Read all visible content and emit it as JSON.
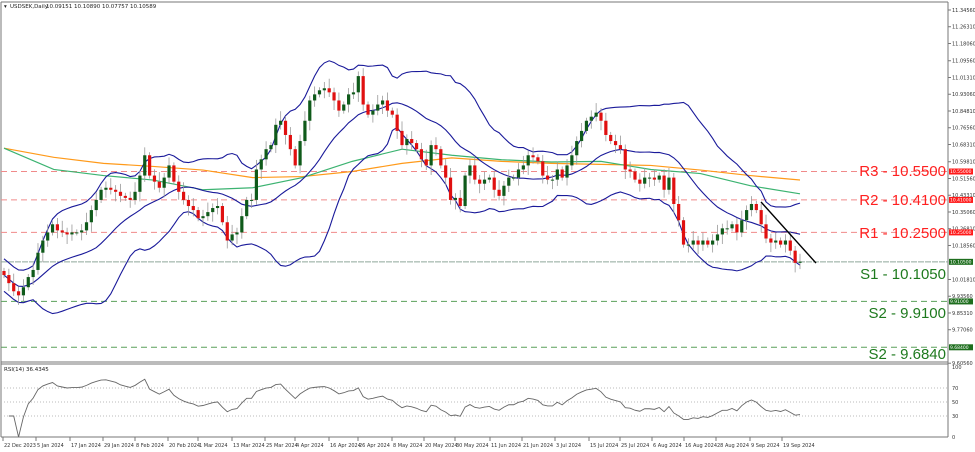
{
  "header": {
    "symbol": "USDSEK,Daily",
    "ohlc": "10.09151 10.10890 10.07757 10.10589"
  },
  "rsi": {
    "label": "RSI(14) 36.4345",
    "period": 14,
    "levels": [
      70,
      50,
      30
    ],
    "axis_ticks": [
      "100",
      "70",
      "50",
      "30",
      "0"
    ]
  },
  "price_axis": {
    "ticks": [
      "11.34560",
      "11.26310",
      "11.18060",
      "11.09560",
      "11.01310",
      "10.93060",
      "10.84810",
      "10.76560",
      "10.68310",
      "10.59810",
      "10.51560",
      "10.43310",
      "10.35060",
      "10.26810",
      "10.18560",
      "10.01810",
      "9.93560",
      "9.85310",
      "9.77060",
      "9.60560"
    ]
  },
  "time_axis": {
    "ticks": [
      "22 Dec 2023",
      "5 Jan 2024",
      "17 Jan 2024",
      "29 Jan 2024",
      "8 Feb 2024",
      "20 Feb 2024",
      "1 Mar 2024",
      "13 Mar 2024",
      "25 Mar 2024",
      "4 Apr 2024",
      "16 Apr 2024",
      "26 Apr 2024",
      "8 May 2024",
      "20 May 2024",
      "30 May 2024",
      "11 Jun 2024",
      "21 Jun 2024",
      "3 Jul 2024",
      "15 Jul 2024",
      "25 Jul 2024",
      "6 Aug 2024",
      "16 Aug 2024",
      "28 Aug 2024",
      "9 Sep 2024",
      "19 Sep 2024"
    ]
  },
  "levels": [
    {
      "label": "R3 - 10.5500",
      "price": 10.55,
      "badge": "10.55000",
      "kind": "resistance"
    },
    {
      "label": "R2 - 10.4100",
      "price": 10.41,
      "badge": "10.41000",
      "kind": "resistance"
    },
    {
      "label": "R1 - 10.2500",
      "price": 10.25,
      "badge": "10.25000",
      "kind": "resistance"
    },
    {
      "label": "S1 - 10.1050",
      "price": 10.105,
      "badge": "10.10500",
      "kind": "support"
    },
    {
      "label": "S2 - 9.9100",
      "price": 9.91,
      "badge": "9.91000",
      "kind": "support"
    },
    {
      "label": "S2 - 9.6840",
      "price": 9.684,
      "badge": "9.68400",
      "kind": "support"
    }
  ],
  "colors": {
    "resistance": "#ff2020",
    "support": "#1e7a1e",
    "bull": "#0f5a1a",
    "bear": "#e01010",
    "bollinger": "#1a1a9a",
    "ma_fast": "#3cb371",
    "ma_slow": "#ff9a1a",
    "trendline": "#000000"
  },
  "closes": [
    10.04,
    10.0,
    9.96,
    9.94,
    9.98,
    10.03,
    10.065,
    10.15,
    10.21,
    10.25,
    10.29,
    10.26,
    10.25,
    10.24,
    10.25,
    10.25,
    10.26,
    10.3,
    10.36,
    10.41,
    10.46,
    10.47,
    10.46,
    10.45,
    10.43,
    10.42,
    10.41,
    10.45,
    10.53,
    10.63,
    10.53,
    10.5,
    10.47,
    10.52,
    10.58,
    10.5,
    10.45,
    10.41,
    10.38,
    10.36,
    10.32,
    10.33,
    10.35,
    10.37,
    10.38,
    10.3,
    10.21,
    10.24,
    10.25,
    10.33,
    10.41,
    10.41,
    10.56,
    10.61,
    10.66,
    10.68,
    10.78,
    10.8,
    10.73,
    10.66,
    10.58,
    10.7,
    10.8,
    10.9,
    10.93,
    10.95,
    10.96,
    10.94,
    10.9,
    10.85,
    10.88,
    10.93,
    10.94,
    11.02,
    10.88,
    10.83,
    10.85,
    10.88,
    10.9,
    10.85,
    10.83,
    10.75,
    10.68,
    10.71,
    10.69,
    10.66,
    10.61,
    10.58,
    10.68,
    10.66,
    10.58,
    10.52,
    10.41,
    10.42,
    10.38,
    10.53,
    10.58,
    10.51,
    10.49,
    10.51,
    10.52,
    10.46,
    10.43,
    10.48,
    10.52,
    10.52,
    10.56,
    10.58,
    10.63,
    10.62,
    10.6,
    10.53,
    10.51,
    10.51,
    10.56,
    10.52,
    10.58,
    10.63,
    10.7,
    10.75,
    10.8,
    10.82,
    10.84,
    10.8,
    10.73,
    10.7,
    10.68,
    10.66,
    10.56,
    10.55,
    10.51,
    10.49,
    10.52,
    10.52,
    10.51,
    10.53,
    10.46,
    10.52,
    10.39,
    10.31,
    10.19,
    10.19,
    10.21,
    10.19,
    10.21,
    10.19,
    10.21,
    10.24,
    10.27,
    10.27,
    10.29,
    10.25,
    10.31,
    10.36,
    10.39,
    10.36,
    10.29,
    10.22,
    10.2,
    10.21,
    10.19,
    10.21,
    10.16,
    10.1,
    10.10589
  ],
  "ma_fast": [
    10.665,
    10.56,
    10.53,
    10.508,
    10.46,
    10.47,
    10.52,
    10.6,
    10.66,
    10.63,
    10.608,
    10.597,
    10.6,
    10.56,
    10.54,
    10.48,
    10.44
  ],
  "ma_slow": [
    10.665,
    10.62,
    10.59,
    10.575,
    10.557,
    10.52,
    10.525,
    10.55,
    10.59,
    10.617,
    10.6,
    10.59,
    10.585,
    10.58,
    10.557,
    10.53,
    10.508
  ],
  "trendline": {
    "from": 10.4,
    "to": 10.099
  }
}
